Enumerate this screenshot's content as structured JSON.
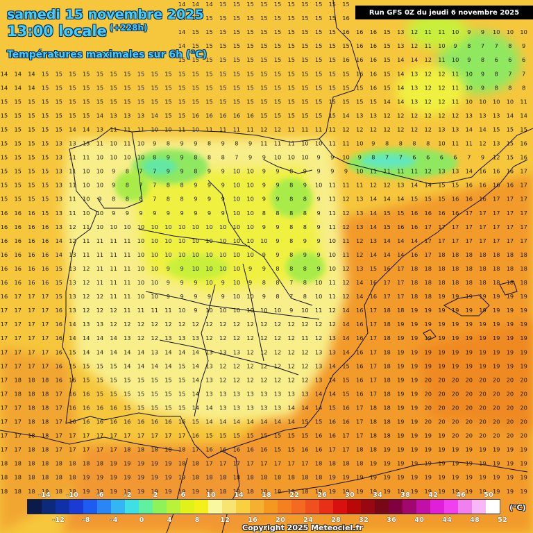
{
  "header": {
    "title_line1": "samedi 15 novembre 2025",
    "title_line2": "13:00 locale",
    "lead_time": "(+228h)",
    "subtitle": "Températures maximales sur 6h (°C)",
    "run_info": "Run GFS 0Z du jeudi 6 novembre 2025"
  },
  "footer": {
    "copyright": "Copyright 2025 Meteociel.fr",
    "unit": "(°C)"
  },
  "legend": {
    "top_labels": [
      "-14",
      "-10",
      "-6",
      "-2",
      "2",
      "6",
      "10",
      "14",
      "18",
      "22",
      "26",
      "30",
      "34",
      "38",
      "42",
      "46",
      "50"
    ],
    "bottom_labels": [
      "-12",
      "-8",
      "-4",
      "0",
      "4",
      "8",
      "12",
      "16",
      "20",
      "24",
      "28",
      "32",
      "36",
      "40",
      "44",
      "48",
      "52"
    ],
    "colors": [
      "#0a1a4a",
      "#0d2a7a",
      "#1030a8",
      "#1a3cd4",
      "#1c5cf0",
      "#2a86f4",
      "#35b6f4",
      "#3ee0e6",
      "#60f0a0",
      "#8ef25a",
      "#b8f23a",
      "#e0f21a",
      "#f4f01a",
      "#f8f8a0",
      "#f8e470",
      "#f8d040",
      "#f4b030",
      "#f49820",
      "#f48020",
      "#f46a20",
      "#f05020",
      "#e83018",
      "#d81010",
      "#b80808",
      "#980810",
      "#780818",
      "#800040",
      "#a00870",
      "#c010a8",
      "#e020d8",
      "#f040f0",
      "#f080f0",
      "#f8b8f8",
      "#ffffff"
    ],
    "color_names": [
      "navy",
      "dark-blue",
      "blue",
      "blue",
      "blue",
      "sky",
      "cyan",
      "turquoise",
      "aqua-green",
      "green",
      "lime",
      "yellow-green",
      "yellow",
      "pale-yellow",
      "light-yellow",
      "gold",
      "light-orange",
      "orange",
      "orange",
      "orange-red",
      "red-orange",
      "red",
      "deep-red",
      "dark-red",
      "crimson",
      "maroon",
      "purple",
      "magenta",
      "violet",
      "pink-violet",
      "pink",
      "light-pink",
      "very-light-pink",
      "white"
    ]
  },
  "map": {
    "region": "Péninsule Ibérique",
    "value_rows": [
      "13 13 13 13 14 14 14 14 14 14 14 14 14 14 14 14 15 15 15 15 15 15 15 15 15 15 16 16 16 16 16 17 17 17 17 17 16 16 16 17",
      "13 13 13 13 14 14 14 14 14 14 14 14 14 14 14 15 15 15 15 15 15 15 15 15 15 16 16 16 15 13 12 11 10 9 8 11 11 10 11 10",
      "13 14 14 14 14 14 14 14 14 14 14 14 14 14 15 15 15 15 15 15 15 15 15 15 15 16 16 16 15 13 12 11 11 10 9 9 10 10 10 9",
      "14 14 14 14 14 14 14 14 14 14 14 14 14 14 15 15 15 15 15 15 15 15 15 15 15 15 16 16 15 13 12 11 10 9 8 7 7 8 9 9",
      "14 14 15 15 15 15 15 15 15 15 15 15 15 15 15 15 15 15 15 15 15 15 15 15 15 16 16 16 15 14 14 12 11 10 9 8 6 6 6 8",
      "14 14 14 15 15 15 15 15 15 15 15 15 15 15 15 15 15 15 15 15 15 15 15 15 15 15 16 16 15 14 13 12 12 11 10 9 8 7 7 8",
      "14 14 14 15 15 15 15 15 15 15 15 15 15 15 15 15 15 15 15 15 15 15 15 15 15 15 15 16 15 14 13 12 12 11 10 9 8 8 8 10",
      "15 15 15 15 15 15 15 15 15 15 15 15 15 15 15 15 15 15 15 15 15 15 15 15 15 15 15 15 14 14 13 12 12 11 10 10 10 10 11 12",
      "15 15 15 15 15 15 15 14 13 13 13 14 15 15 16 16 16 16 16 15 15 15 15 15 15 14 13 13 12 12 12 12 12 12 13 13 13 14 14 15",
      "15 15 15 15 15 14 14 13 11 11 11 10 10 11 10 11 11 11 11 12 12 11 11 11 11 12 12 12 12 12 12 12 13 13 14 14 15 15 15 16",
      "15 15 15 15 13 13 13 11 10 11 10 9 8 9 9 8 9 8 9 11 11 11 10 10 11 11 10 9 8 8 8 8 10 11 11 12 13 15 16 16",
      "15 15 15 15 13 11 11 10 10 10 10 8 9 9 8 8 8 7 9 9 10 10 10 9 9 10 9 8 7 7 6 6 6 6 7 9 12 15 16 17",
      "15 15 15 15 13 11 10 10 9 8 7 7 9 9 8 9 9 10 10 9 9 8 9 9 9 9 10 11 11 11 11 12 13 13 14 16 16 16 17 17",
      "15 15 15 15 13 11 10 10 9 8 7 7 8 8 9 9 9 10 10 9 9 8 9 10 11 11 11 12 12 13 14 14 15 15 16 16 16 16 17 17",
      "15 15 15 15 13 11 10 9 8 8 8 7 8 8 9 9 9 10 10 9 9 8 8 9 11 12 13 14 14 14 15 15 15 16 16 16 17 17 17 17",
      "16 16 16 15 13 11 10 10 9 9 9 9 9 9 9 9 9 10 10 8 8 8 8 9 11 12 13 14 15 15 16 16 16 16 17 17 17 17 17 17",
      "16 16 16 16 13 12 11 10 10 10 10 10 10 10 10 10 10 10 10 9 9 8 8 9 11 12 13 14 15 16 16 17 17 17 17 17 17 17 17 17",
      "16 16 16 16 14 12 11 11 11 11 10 10 10 10 10 10 10 10 10 10 9 8 9 9 10 11 12 13 14 14 14 17 17 17 17 17 17 17 17 17",
      "16 16 16 16 14 13 11 11 11 11 10 10 10 10 10 10 10 10 10 9 9 8 9 9 10 11 12 14 14 14 16 17 18 18 18 18 18 18 18 18",
      "16 16 16 16 15 13 12 11 11 11 10 10 9 9 10 10 10 10 9 9 8 8 8 9 10 12 13 15 16 17 18 18 18 18 18 18 18 18 18 18",
      "16 16 16 16 15 13 12 11 11 11 10 10 9 9 9 10 9 10 9 8 8 7 8 10 11 12 14 16 17 17 18 18 18 18 18 18 18 18 18 18",
      "16 17 17 17 15 13 12 12 11 11 10 10 9 9 9 9 9 10 10 9 8 7 8 10 11 12 14 16 17 17 18 18 19 19 19 19 19 19 19 19",
      "17 17 17 17 16 13 12 12 12 11 11 11 11 10 9 10 10 10 10 10 10 9 10 11 12 14 16 17 18 18 19 19 19 19 19 19 19 19 19 19",
      "17 17 17 17 16 14 13 13 12 12 12 12 12 12 12 12 12 12 12 12 12 12 12 12 12 14 16 17 18 19 19 19 19 19 19 19 19 19 19 19",
      "17 17 17 17 16 14 14 14 14 13 12 12 13 13 13 12 12 12 12 12 12 12 11 12 13 14 16 17 18 19 19 19 19 19 19 19 19 19 19 19",
      "17 17 17 17 16 15 14 14 14 14 14 13 14 14 14 13 13 13 12 12 12 12 12 13 13 14 16 17 18 19 19 19 19 19 19 19 19 19 19 19",
      "17 17 17 17 16 15 15 15 15 14 14 14 14 15 14 13 12 12 12 12 12 12 12 13 14 15 16 17 18 19 19 19 19 19 19 19 19 19 19 19",
      "17 18 18 18 16 16 15 15 15 15 15 15 15 15 14 13 12 12 12 12 12 12 12 13 14 15 16 17 18 19 19 20 20 20 20 20 20 20 20 20",
      "17 18 18 18 17 16 16 15 15 15 15 15 15 15 14 13 13 13 13 13 13 13 13 14 14 15 16 17 18 19 19 20 20 20 20 20 20 20 20 20",
      "17 17 18 18 17 16 16 16 16 15 15 15 15 15 14 14 13 13 13 13 13 14 14 14 15 16 17 18 18 19 19 20 20 20 20 20 20 20 20 20",
      "17 17 18 18 17 16 16 16 16 16 16 16 16 16 15 14 14 14 14 14 14 14 15 15 16 16 17 18 18 19 19 20 20 20 20 20 20 20 20 20",
      "17 17 18 18 17 17 17 17 17 17 17 17 17 17 16 15 15 15 15 15 15 15 15 16 16 17 17 18 18 19 19 19 19 20 20 20 20 20 20 20",
      "17 17 18 18 17 17 17 17 17 18 18 18 18 18 17 16 16 16 16 16 15 15 16 16 17 17 18 18 19 19 19 19 19 19 19 19 19 19 19 19",
      "18 18 18 18 18 18 18 18 19 19 19 19 19 18 18 17 17 17 17 17 17 17 17 18 18 18 18 19 19 19 19 19 19 19 19 19 19 19 19 19",
      "18 18 18 18 18 18 19 19 19 19 19 19 19 19 18 18 18 18 18 18 18 18 18 18 19 19 19 19 19 19 19 19 19 19 19 19 19 19 19 19",
      "18 18 18 18 18 18 19 19 19 19 19 19 19 19 19 18 18 18 18 18 18 18 18 19 19 19 19 19 19 19 19 19 19 19 19 19 19 19 19 19",
      "19 19 19 19 19 19 19 19 19 20 20 20 20 20 19 19 19 19 19 19 19 19 19 19 19 19 19 19 19 19 19 19 19 19 19 19 19 19 19 19",
      "19 19 19 19 19 19 19 19 19 20 20 20 20 20 20 19 19 19 19 19 19 19 19 19 19 19 19 19 19 19 19 19 19 19 19 19 19 19 19 19",
      "20 20 20 20 20 20 20 20 20 20 20 21 20 20 20 20 20 19 19 19 19 19 19 19 19 19 19 19 19 19 19 19 19 19 19 19 19 19 19 19"
    ]
  }
}
